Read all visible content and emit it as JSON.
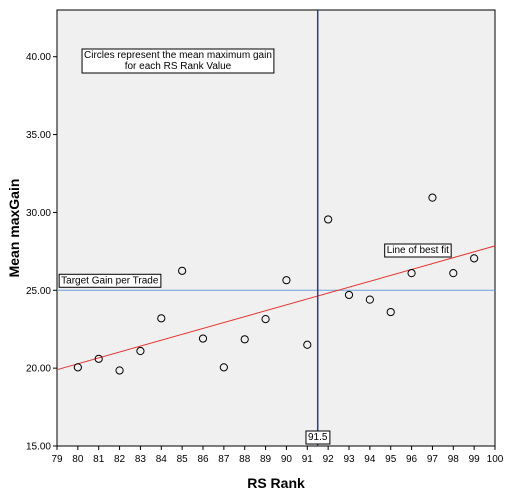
{
  "chart_data": {
    "type": "scatter",
    "xlabel": "RS Rank",
    "ylabel": "Mean maxGain",
    "xlim": [
      79,
      100
    ],
    "ylim": [
      15,
      43
    ],
    "x_ticks": [
      "79",
      "80",
      "81",
      "82",
      "83",
      "84",
      "85",
      "86",
      "87",
      "88",
      "89",
      "90",
      "91",
      "92",
      "93",
      "94",
      "95",
      "96",
      "97",
      "98",
      "99",
      "100"
    ],
    "y_ticks": [
      "15.00",
      "20.00",
      "25.00",
      "30.00",
      "35.00",
      "40.00"
    ],
    "grid": false,
    "points": [
      {
        "x": 80,
        "y": 20.05
      },
      {
        "x": 81,
        "y": 20.6
      },
      {
        "x": 82,
        "y": 19.85
      },
      {
        "x": 83,
        "y": 21.1
      },
      {
        "x": 84,
        "y": 23.2
      },
      {
        "x": 85,
        "y": 26.25
      },
      {
        "x": 86,
        "y": 21.9
      },
      {
        "x": 87,
        "y": 20.05
      },
      {
        "x": 88,
        "y": 21.85
      },
      {
        "x": 89,
        "y": 23.15
      },
      {
        "x": 90,
        "y": 25.65
      },
      {
        "x": 91,
        "y": 21.5
      },
      {
        "x": 92,
        "y": 29.55
      },
      {
        "x": 93,
        "y": 24.7
      },
      {
        "x": 94,
        "y": 24.4
      },
      {
        "x": 95,
        "y": 23.6
      },
      {
        "x": 96,
        "y": 26.1
      },
      {
        "x": 97,
        "y": 30.95
      },
      {
        "x": 98,
        "y": 26.1
      },
      {
        "x": 99,
        "y": 27.05
      }
    ],
    "fit_line": {
      "x": [
        79,
        100
      ],
      "y": [
        19.9,
        27.85
      ],
      "color": "#e8302c",
      "label": "Line of best fit"
    },
    "target_line": {
      "y": 25.0,
      "color": "#6c9fdc",
      "label": "Target Gain per Trade"
    },
    "vertical_line": {
      "x": 91.5,
      "color": "#2e3b8e",
      "label": "91.5"
    },
    "annotation": {
      "lines": [
        "Circles represent the mean maximum gain",
        "for each RS Rank Value"
      ]
    },
    "colors": {
      "plot_background": "#f0f0f0",
      "marker_stroke": "#000000"
    }
  }
}
